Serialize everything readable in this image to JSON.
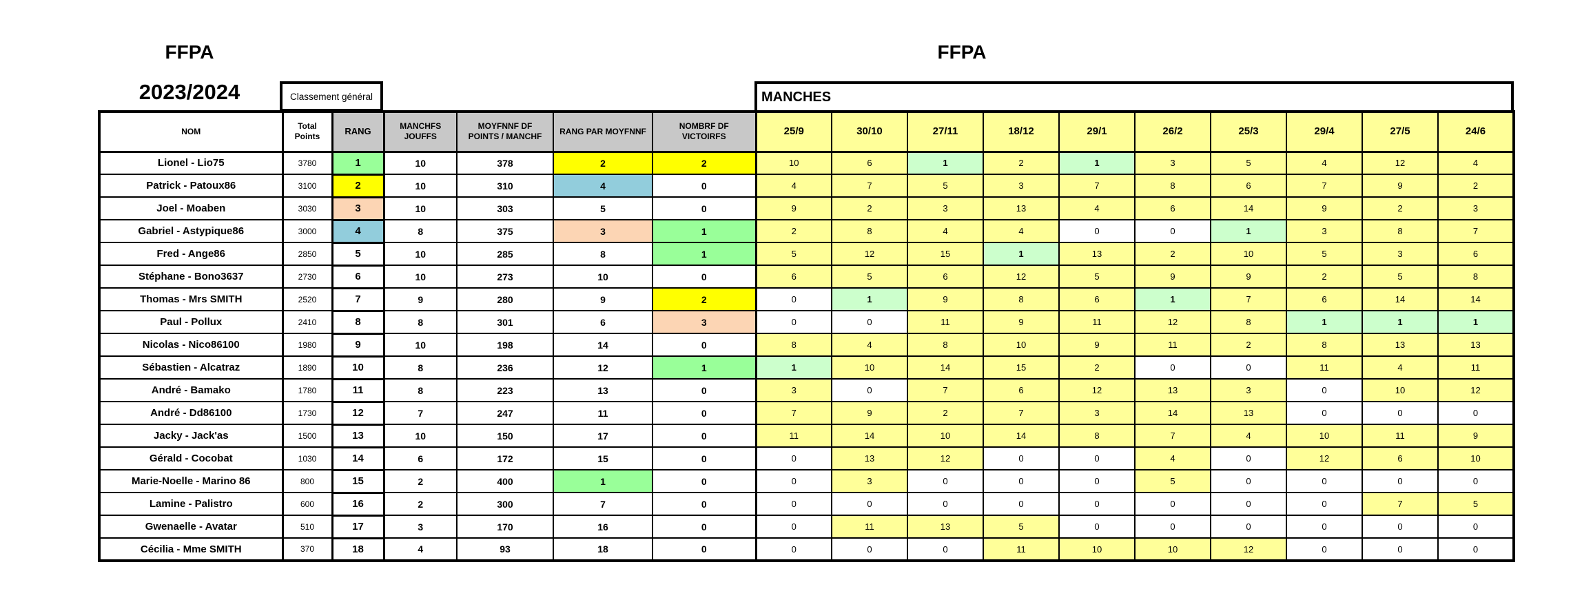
{
  "titles": {
    "org_left": "FFPA",
    "season": "2023/2024",
    "org_right": "FFPA",
    "classement_label": "Classement général",
    "manches_label": "MANCHES"
  },
  "columns": {
    "nom": "NOM",
    "total": "Total\nPoints",
    "rang": "RANG",
    "manches_jouees": "MANCHFS\nJOUFFS",
    "moyenne": "MOYFNNF DF\nPOINTS / MANCHF",
    "rang_moyenne": "RANG PAR MOYFNNF",
    "victoires": "NOMBRF DF\nVICTOIRFS"
  },
  "dates": [
    "25/9",
    "30/10",
    "27/11",
    "18/12",
    "29/1",
    "26/2",
    "25/3",
    "29/4",
    "27/5",
    "24/6"
  ],
  "colors": {
    "w": "#FFFFFF",
    "y": "#FFFF99",
    "Y": "#FFFF00",
    "m": "#CCFFCC",
    "g": "#99FF99",
    "p": "#FCD5B4",
    "b": "#92CDDC",
    "header_gray": "#C8C8C8",
    "border": "#000000"
  },
  "rows": [
    {
      "nom": "Lionel - Lio75",
      "total": "3780",
      "rang": "1",
      "rang_c": "g",
      "mj": "10",
      "moy": "378",
      "rpm": "2",
      "rpm_c": "Y",
      "vic": "2",
      "vic_c": "Y",
      "manches": [
        "10",
        "6",
        "1",
        "2",
        "1",
        "3",
        "5",
        "4",
        "12",
        "4"
      ],
      "manches_c": [
        "y",
        "y",
        "m",
        "y",
        "m",
        "y",
        "y",
        "y",
        "y",
        "y"
      ]
    },
    {
      "nom": "Patrick - Patoux86",
      "total": "3100",
      "rang": "2",
      "rang_c": "Y",
      "mj": "10",
      "moy": "310",
      "rpm": "4",
      "rpm_c": "b",
      "vic": "0",
      "vic_c": "w",
      "manches": [
        "4",
        "7",
        "5",
        "3",
        "7",
        "8",
        "6",
        "7",
        "9",
        "2"
      ],
      "manches_c": [
        "y",
        "y",
        "y",
        "y",
        "y",
        "y",
        "y",
        "y",
        "y",
        "y"
      ]
    },
    {
      "nom": "Joel - Moaben",
      "total": "3030",
      "rang": "3",
      "rang_c": "p",
      "mj": "10",
      "moy": "303",
      "rpm": "5",
      "rpm_c": "w",
      "vic": "0",
      "vic_c": "w",
      "manches": [
        "9",
        "2",
        "3",
        "13",
        "4",
        "6",
        "14",
        "9",
        "2",
        "3"
      ],
      "manches_c": [
        "y",
        "y",
        "y",
        "y",
        "y",
        "y",
        "y",
        "y",
        "y",
        "y"
      ]
    },
    {
      "nom": "Gabriel - Astypique86",
      "total": "3000",
      "rang": "4",
      "rang_c": "b",
      "mj": "8",
      "moy": "375",
      "rpm": "3",
      "rpm_c": "p",
      "vic": "1",
      "vic_c": "g",
      "manches": [
        "2",
        "8",
        "4",
        "4",
        "0",
        "0",
        "1",
        "3",
        "8",
        "7"
      ],
      "manches_c": [
        "y",
        "y",
        "y",
        "y",
        "w",
        "w",
        "m",
        "y",
        "y",
        "y"
      ]
    },
    {
      "nom": "Fred - Ange86",
      "total": "2850",
      "rang": "5",
      "rang_c": "w",
      "mj": "10",
      "moy": "285",
      "rpm": "8",
      "rpm_c": "w",
      "vic": "1",
      "vic_c": "g",
      "manches": [
        "5",
        "12",
        "15",
        "1",
        "13",
        "2",
        "10",
        "5",
        "3",
        "6"
      ],
      "manches_c": [
        "y",
        "y",
        "y",
        "m",
        "y",
        "y",
        "y",
        "y",
        "y",
        "y"
      ]
    },
    {
      "nom": "Stéphane - Bono3637",
      "total": "2730",
      "rang": "6",
      "rang_c": "w",
      "mj": "10",
      "moy": "273",
      "rpm": "10",
      "rpm_c": "w",
      "vic": "0",
      "vic_c": "w",
      "manches": [
        "6",
        "5",
        "6",
        "12",
        "5",
        "9",
        "9",
        "2",
        "5",
        "8"
      ],
      "manches_c": [
        "y",
        "y",
        "y",
        "y",
        "y",
        "y",
        "y",
        "y",
        "y",
        "y"
      ]
    },
    {
      "nom": "Thomas - Mrs SMITH",
      "total": "2520",
      "rang": "7",
      "rang_c": "w",
      "mj": "9",
      "moy": "280",
      "rpm": "9",
      "rpm_c": "w",
      "vic": "2",
      "vic_c": "Y",
      "manches": [
        "0",
        "1",
        "9",
        "8",
        "6",
        "1",
        "7",
        "6",
        "14",
        "14"
      ],
      "manches_c": [
        "w",
        "m",
        "y",
        "y",
        "y",
        "m",
        "y",
        "y",
        "y",
        "y"
      ]
    },
    {
      "nom": "Paul - Pollux",
      "total": "2410",
      "rang": "8",
      "rang_c": "w",
      "mj": "8",
      "moy": "301",
      "rpm": "6",
      "rpm_c": "w",
      "vic": "3",
      "vic_c": "p",
      "manches": [
        "0",
        "0",
        "11",
        "9",
        "11",
        "12",
        "8",
        "1",
        "1",
        "1"
      ],
      "manches_c": [
        "w",
        "w",
        "y",
        "y",
        "y",
        "y",
        "y",
        "m",
        "m",
        "m"
      ]
    },
    {
      "nom": "Nicolas - Nico86100",
      "total": "1980",
      "rang": "9",
      "rang_c": "w",
      "mj": "10",
      "moy": "198",
      "rpm": "14",
      "rpm_c": "w",
      "vic": "0",
      "vic_c": "w",
      "manches": [
        "8",
        "4",
        "8",
        "10",
        "9",
        "11",
        "2",
        "8",
        "13",
        "13"
      ],
      "manches_c": [
        "y",
        "y",
        "y",
        "y",
        "y",
        "y",
        "y",
        "y",
        "y",
        "y"
      ]
    },
    {
      "nom": "Sébastien - Alcatraz",
      "total": "1890",
      "rang": "10",
      "rang_c": "w",
      "mj": "8",
      "moy": "236",
      "rpm": "12",
      "rpm_c": "w",
      "vic": "1",
      "vic_c": "g",
      "manches": [
        "1",
        "10",
        "14",
        "15",
        "2",
        "0",
        "0",
        "11",
        "4",
        "11"
      ],
      "manches_c": [
        "m",
        "y",
        "y",
        "y",
        "y",
        "w",
        "w",
        "y",
        "y",
        "y"
      ]
    },
    {
      "nom": "André - Bamako",
      "total": "1780",
      "rang": "11",
      "rang_c": "w",
      "mj": "8",
      "moy": "223",
      "rpm": "13",
      "rpm_c": "w",
      "vic": "0",
      "vic_c": "w",
      "manches": [
        "3",
        "0",
        "7",
        "6",
        "12",
        "13",
        "3",
        "0",
        "10",
        "12"
      ],
      "manches_c": [
        "y",
        "w",
        "y",
        "y",
        "y",
        "y",
        "y",
        "w",
        "y",
        "y"
      ]
    },
    {
      "nom": "André - Dd86100",
      "total": "1730",
      "rang": "12",
      "rang_c": "w",
      "mj": "7",
      "moy": "247",
      "rpm": "11",
      "rpm_c": "w",
      "vic": "0",
      "vic_c": "w",
      "manches": [
        "7",
        "9",
        "2",
        "7",
        "3",
        "14",
        "13",
        "0",
        "0",
        "0"
      ],
      "manches_c": [
        "y",
        "y",
        "y",
        "y",
        "y",
        "y",
        "y",
        "w",
        "w",
        "w"
      ]
    },
    {
      "nom": "Jacky - Jack'as",
      "total": "1500",
      "rang": "13",
      "rang_c": "w",
      "mj": "10",
      "moy": "150",
      "rpm": "17",
      "rpm_c": "w",
      "vic": "0",
      "vic_c": "w",
      "manches": [
        "11",
        "14",
        "10",
        "14",
        "8",
        "7",
        "4",
        "10",
        "11",
        "9"
      ],
      "manches_c": [
        "y",
        "y",
        "y",
        "y",
        "y",
        "y",
        "y",
        "y",
        "y",
        "y"
      ]
    },
    {
      "nom": "Gérald - Cocobat",
      "total": "1030",
      "rang": "14",
      "rang_c": "w",
      "mj": "6",
      "moy": "172",
      "rpm": "15",
      "rpm_c": "w",
      "vic": "0",
      "vic_c": "w",
      "manches": [
        "0",
        "13",
        "12",
        "0",
        "0",
        "4",
        "0",
        "12",
        "6",
        "10"
      ],
      "manches_c": [
        "w",
        "y",
        "y",
        "w",
        "w",
        "y",
        "w",
        "y",
        "y",
        "y"
      ]
    },
    {
      "nom": "Marie-Noelle - Marino 86",
      "total": "800",
      "rang": "15",
      "rang_c": "w",
      "mj": "2",
      "moy": "400",
      "rpm": "1",
      "rpm_c": "g",
      "vic": "0",
      "vic_c": "w",
      "manches": [
        "0",
        "3",
        "0",
        "0",
        "0",
        "5",
        "0",
        "0",
        "0",
        "0"
      ],
      "manches_c": [
        "w",
        "y",
        "w",
        "w",
        "w",
        "y",
        "w",
        "w",
        "w",
        "w"
      ]
    },
    {
      "nom": "Lamine - Palistro",
      "total": "600",
      "rang": "16",
      "rang_c": "w",
      "mj": "2",
      "moy": "300",
      "rpm": "7",
      "rpm_c": "w",
      "vic": "0",
      "vic_c": "w",
      "manches": [
        "0",
        "0",
        "0",
        "0",
        "0",
        "0",
        "0",
        "0",
        "7",
        "5"
      ],
      "manches_c": [
        "w",
        "w",
        "w",
        "w",
        "w",
        "w",
        "w",
        "w",
        "y",
        "y"
      ]
    },
    {
      "nom": "Gwenaelle - Avatar",
      "total": "510",
      "rang": "17",
      "rang_c": "w",
      "mj": "3",
      "moy": "170",
      "rpm": "16",
      "rpm_c": "w",
      "vic": "0",
      "vic_c": "w",
      "manches": [
        "0",
        "11",
        "13",
        "5",
        "0",
        "0",
        "0",
        "0",
        "0",
        "0"
      ],
      "manches_c": [
        "w",
        "y",
        "y",
        "y",
        "w",
        "w",
        "w",
        "w",
        "w",
        "w"
      ]
    },
    {
      "nom": "Cécilia - Mme SMITH",
      "total": "370",
      "rang": "18",
      "rang_c": "w",
      "mj": "4",
      "moy": "93",
      "rpm": "18",
      "rpm_c": "w",
      "vic": "0",
      "vic_c": "w",
      "manches": [
        "0",
        "0",
        "0",
        "11",
        "10",
        "10",
        "12",
        "0",
        "0",
        "0"
      ],
      "manches_c": [
        "w",
        "w",
        "w",
        "y",
        "y",
        "y",
        "y",
        "w",
        "w",
        "w"
      ]
    }
  ]
}
